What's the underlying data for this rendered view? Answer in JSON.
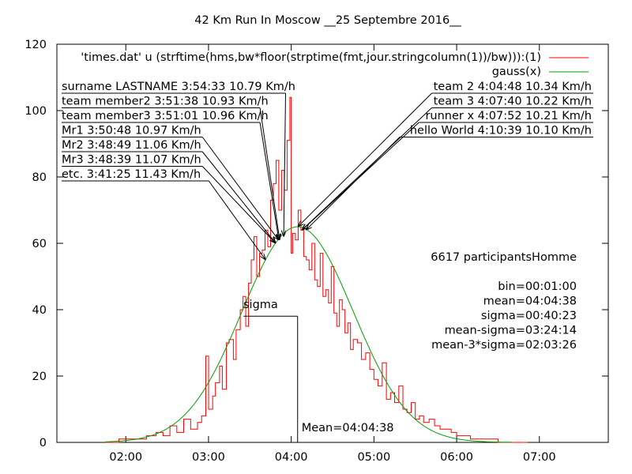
{
  "chart_data": {
    "type": "histogram",
    "title": "42 Km Run In Moscow __25 Septembre 2016__",
    "xlabel": "",
    "ylabel": "",
    "x_unit": "hh:mm",
    "xlim": [
      "01:10",
      "07:50"
    ],
    "ylim": [
      0,
      120
    ],
    "x_ticks": [
      "02:00",
      "03:00",
      "04:00",
      "05:00",
      "06:00",
      "07:00"
    ],
    "y_ticks": [
      0,
      20,
      40,
      60,
      80,
      100,
      120
    ],
    "grid": false,
    "legend_position": "top-right",
    "colors": {
      "histogram": "#ff0000",
      "gauss": "#00a000",
      "axes": "#000000"
    },
    "series": [
      {
        "name": "'times.dat'  u (strftime(hms,bw*floor(strptime(fmt,jour.stringcolumn(1))/bw))):(1)",
        "kind": "step",
        "bin_minutes": 1,
        "x": [
          "01:45",
          "01:55",
          "02:05",
          "02:15",
          "02:22",
          "02:27",
          "02:32",
          "02:37",
          "02:42",
          "02:47",
          "02:52",
          "02:55",
          "02:58",
          "03:00",
          "03:03",
          "03:05",
          "03:08",
          "03:10",
          "03:13",
          "03:15",
          "03:18",
          "03:20",
          "03:23",
          "03:25",
          "03:27",
          "03:29",
          "03:31",
          "03:33",
          "03:35",
          "03:37",
          "03:39",
          "03:41",
          "03:43",
          "03:45",
          "03:47",
          "03:49",
          "03:51",
          "03:53",
          "03:55",
          "03:57",
          "03:59",
          "04:00",
          "04:01",
          "04:03",
          "04:05",
          "04:07",
          "04:09",
          "04:11",
          "04:13",
          "04:15",
          "04:17",
          "04:19",
          "04:21",
          "04:23",
          "04:25",
          "04:27",
          "04:29",
          "04:31",
          "04:33",
          "04:35",
          "04:37",
          "04:39",
          "04:41",
          "04:43",
          "04:45",
          "04:48",
          "04:51",
          "04:54",
          "04:57",
          "05:00",
          "05:03",
          "05:06",
          "05:09",
          "05:12",
          "05:15",
          "05:18",
          "05:21",
          "05:24",
          "05:27",
          "05:30",
          "05:33",
          "05:36",
          "05:40",
          "05:44",
          "05:48",
          "05:52",
          "05:56",
          "06:00",
          "06:05",
          "06:10",
          "06:15",
          "06:20",
          "06:25",
          "06:30",
          "06:40",
          "06:50"
        ],
        "y": [
          0,
          1,
          1,
          2,
          3,
          2,
          5,
          3,
          7,
          4,
          6,
          8,
          26,
          10,
          14,
          18,
          23,
          16,
          30,
          31,
          25,
          34,
          40,
          44,
          35,
          48,
          55,
          62,
          50,
          57,
          58,
          64,
          59,
          73,
          78,
          85,
          70,
          82,
          76,
          91,
          104,
          57,
          63,
          61,
          70,
          64,
          56,
          55,
          52,
          60,
          49,
          47,
          57,
          44,
          46,
          42,
          53,
          39,
          35,
          43,
          40,
          33,
          36,
          28,
          31,
          30,
          25,
          27,
          22,
          19,
          17,
          24,
          13,
          15,
          12,
          17,
          10,
          9,
          12,
          7,
          8,
          6,
          7,
          5,
          4,
          4,
          3,
          2,
          2,
          1,
          1,
          1,
          1,
          0,
          0,
          0
        ]
      },
      {
        "name": "gauss(x)",
        "kind": "gaussian",
        "mean": "04:04:38",
        "sigma": "00:40:23",
        "amplitude": 65,
        "plot_range": [
          "01:45",
          "06:40"
        ]
      }
    ],
    "annotations": {
      "left_labels": [
        {
          "text": "surname LASTNAME 3:54:33 10.79 Km/h",
          "target_time": "03:54:33",
          "target_count": 62
        },
        {
          "text": "team member2 3:51:38 10.93 Km/h",
          "target_time": "03:51:38",
          "target_count": 61
        },
        {
          "text": "team member3 3:51:01 10.96 Km/h",
          "target_time": "03:51:01",
          "target_count": 61
        },
        {
          "text": "Mr1 3:50:48 10.97 Km/h",
          "target_time": "03:50:48",
          "target_count": 61
        },
        {
          "text": "Mr2 3:48:49 11.06 Km/h",
          "target_time": "03:48:49",
          "target_count": 60
        },
        {
          "text": "Mr3 3:48:39 11.07 Km/h",
          "target_time": "03:48:39",
          "target_count": 60
        },
        {
          "text": "etc. 3:41:25 11.43 Km/h",
          "target_time": "03:41:25",
          "target_count": 55
        }
      ],
      "right_labels": [
        {
          "text": "team 2 4:04:48 10.34 Km/h",
          "target_time": "04:04:48",
          "target_count": 65
        },
        {
          "text": "team 3 4:07:40 10.22 Km/h",
          "target_time": "04:07:40",
          "target_count": 64
        },
        {
          "text": "runner x 4:07:52 10.21 Km/h",
          "target_time": "04:07:52",
          "target_count": 64
        },
        {
          "text": "hello World 4:10:39 10.10 Km/h",
          "target_time": "04:10:39",
          "target_count": 64
        }
      ],
      "sigma_label": "sigma",
      "sigma_marker": {
        "time": "03:24:14",
        "count": 39
      },
      "mean_label": "Mean=04:04:38",
      "mean_marker": {
        "time": "04:04:38",
        "count": 39
      },
      "stats": [
        "6617  participantsHomme",
        "",
        "bin=00:01:00",
        "mean=04:04:38",
        "sigma=00:40:23",
        "mean-sigma=03:24:14",
        "mean-3*sigma=02:03:26"
      ]
    }
  }
}
